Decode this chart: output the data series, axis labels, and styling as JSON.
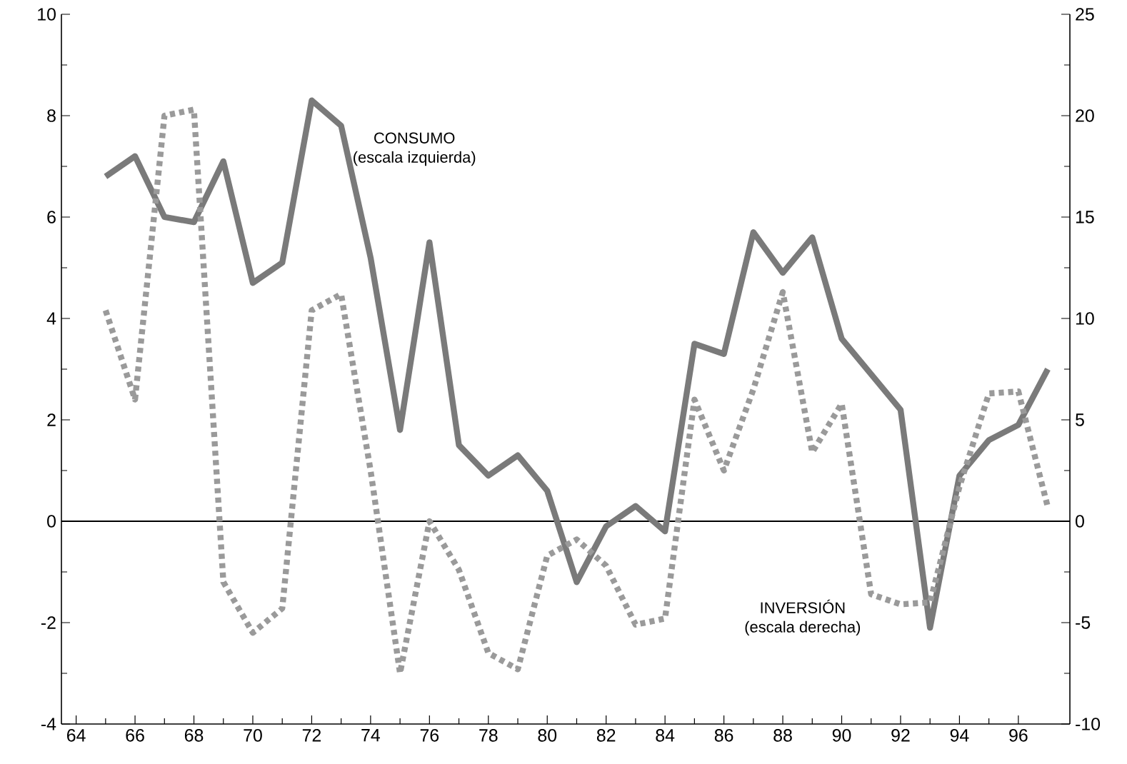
{
  "chart_data": {
    "type": "line",
    "x": [
      65,
      66,
      67,
      68,
      69,
      70,
      71,
      72,
      73,
      74,
      75,
      76,
      77,
      78,
      79,
      80,
      81,
      82,
      83,
      84,
      85,
      86,
      87,
      88,
      89,
      90,
      91,
      92,
      93,
      94,
      95,
      96,
      97
    ],
    "series": [
      {
        "name": "CONSUMO",
        "color": "#7a7a7a",
        "line_style": "solid",
        "values": [
          6.8,
          7.2,
          6.0,
          5.9,
          7.1,
          4.7,
          5.1,
          8.3,
          7.8,
          5.2,
          1.8,
          5.5,
          1.5,
          0.9,
          1.3,
          0.6,
          -1.2,
          -0.1,
          0.3,
          -0.2,
          3.5,
          3.3,
          5.7,
          4.9,
          5.6,
          3.6,
          2.9,
          2.2,
          -2.1,
          0.9,
          1.6,
          1.9,
          3.0
        ]
      },
      {
        "name": "INVERSIÓN",
        "color": "#9a9a9a",
        "line_style": "dotted",
        "axis": "y2",
        "values": [
          10.4,
          6.0,
          20.0,
          20.3,
          -3.0,
          -5.5,
          -4.3,
          10.4,
          11.2,
          2.5,
          -7.5,
          0.0,
          -2.4,
          -6.5,
          -7.3,
          -1.7,
          -0.9,
          -2.2,
          -5.1,
          -4.8,
          6.0,
          2.5,
          6.5,
          11.3,
          3.4,
          5.8,
          -3.6,
          -4.1,
          -4.0,
          1.7,
          6.3,
          6.4,
          0.7
        ]
      }
    ],
    "annotations": [
      "(escala izquierda)",
      "(escala derecha)"
    ],
    "xlim": [
      63.5,
      97.75
    ],
    "xticks": [
      64,
      66,
      68,
      70,
      72,
      74,
      76,
      78,
      80,
      82,
      84,
      86,
      88,
      90,
      92,
      94,
      96
    ],
    "ylim": [
      -4,
      10
    ],
    "yticks": [
      -4,
      -2,
      0,
      2,
      4,
      6,
      8,
      10
    ],
    "y2lim": [
      -10,
      25
    ],
    "y2ticks": [
      -10,
      -5,
      0,
      5,
      10,
      15,
      20,
      25
    ],
    "ref_lines": [
      {
        "axis": "y",
        "value": 0,
        "color": "#000000"
      }
    ]
  }
}
